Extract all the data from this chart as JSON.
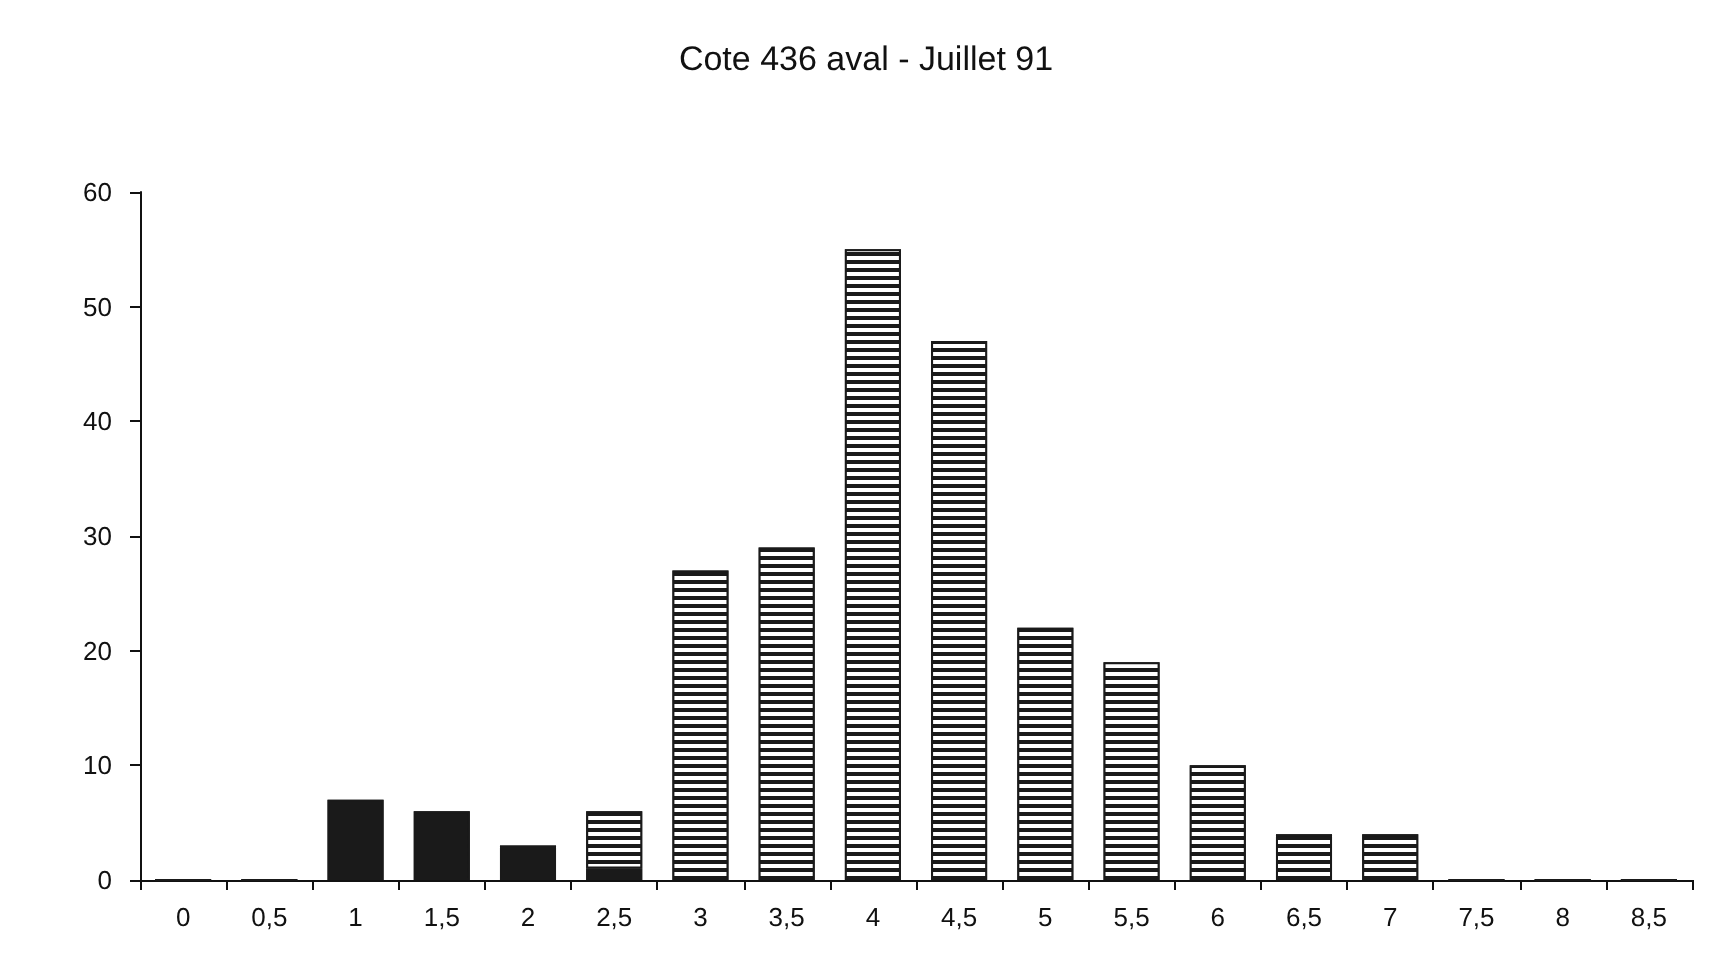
{
  "chart_data": {
    "type": "bar",
    "title": "Cote 436 aval - Juillet 91",
    "categories": [
      "0",
      "0,5",
      "1",
      "1,5",
      "2",
      "2,5",
      "3",
      "3,5",
      "4",
      "4,5",
      "5",
      "5,5",
      "6",
      "6,5",
      "7",
      "7,5",
      "8",
      "8,5"
    ],
    "stacked": true,
    "series": [
      {
        "color": "#1a1a1a",
        "values": [
          0,
          0,
          7,
          6,
          3,
          1,
          null,
          null,
          null,
          null,
          null,
          null,
          null,
          null,
          null,
          0,
          0,
          0
        ]
      },
      {
        "color": "#1a1a1a",
        "values": [
          null,
          null,
          null,
          null,
          null,
          5,
          27,
          29,
          55,
          47,
          22,
          19,
          10,
          4,
          4,
          null,
          null,
          null
        ]
      }
    ],
    "ylim": [
      0,
      60
    ],
    "yticks": [
      0,
      10,
      20,
      30,
      40,
      50,
      60
    ],
    "grid": false
  }
}
